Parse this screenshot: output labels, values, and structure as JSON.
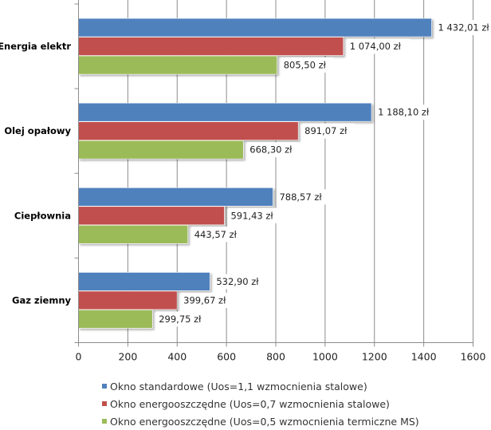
{
  "chart_data": {
    "type": "bar",
    "orientation": "horizontal",
    "title": "",
    "xlabel": "",
    "ylabel": "",
    "categories": [
      "Energia elektr",
      "Olej opałowy",
      "Ciepłownia",
      "Gaz ziemny"
    ],
    "series": [
      {
        "name": "Okno standardowe (Uos=1,1 wzmocnienia stalowe)",
        "color": "#4F81BD",
        "values": [
          1432.01,
          1188.1,
          788.57,
          532.9
        ],
        "labels": [
          "1 432,01 zł",
          "1 188,10 zł",
          "788,57 zł",
          "532,90 zł"
        ]
      },
      {
        "name": "Okno energooszczędne (Uos=0,7 wzmocnienia stalowe)",
        "color": "#C0504D",
        "values": [
          1074.0,
          891.07,
          591.43,
          399.67
        ],
        "labels": [
          "1 074,00 zł",
          "891,07 zł",
          "591,43 zł",
          "399,67 zł"
        ]
      },
      {
        "name": "Okno energooszczędne (Uos=0,5 wzmocnienia termiczne MS)",
        "color": "#9BBB59",
        "values": [
          805.5,
          668.3,
          443.57,
          299.75
        ],
        "labels": [
          "805,50 zł",
          "668,30 zł",
          "443,57 zł",
          "299,75 zł"
        ]
      }
    ],
    "xlim": [
      0,
      1600
    ],
    "xticks": [
      0,
      200,
      400,
      600,
      800,
      1000,
      1200,
      1400,
      1600
    ],
    "xtick_labels": [
      "0",
      "200",
      "400",
      "600",
      "800",
      "1000",
      "1200",
      "1400",
      "1600"
    ],
    "grid": "vertical",
    "legend": "bottom"
  }
}
